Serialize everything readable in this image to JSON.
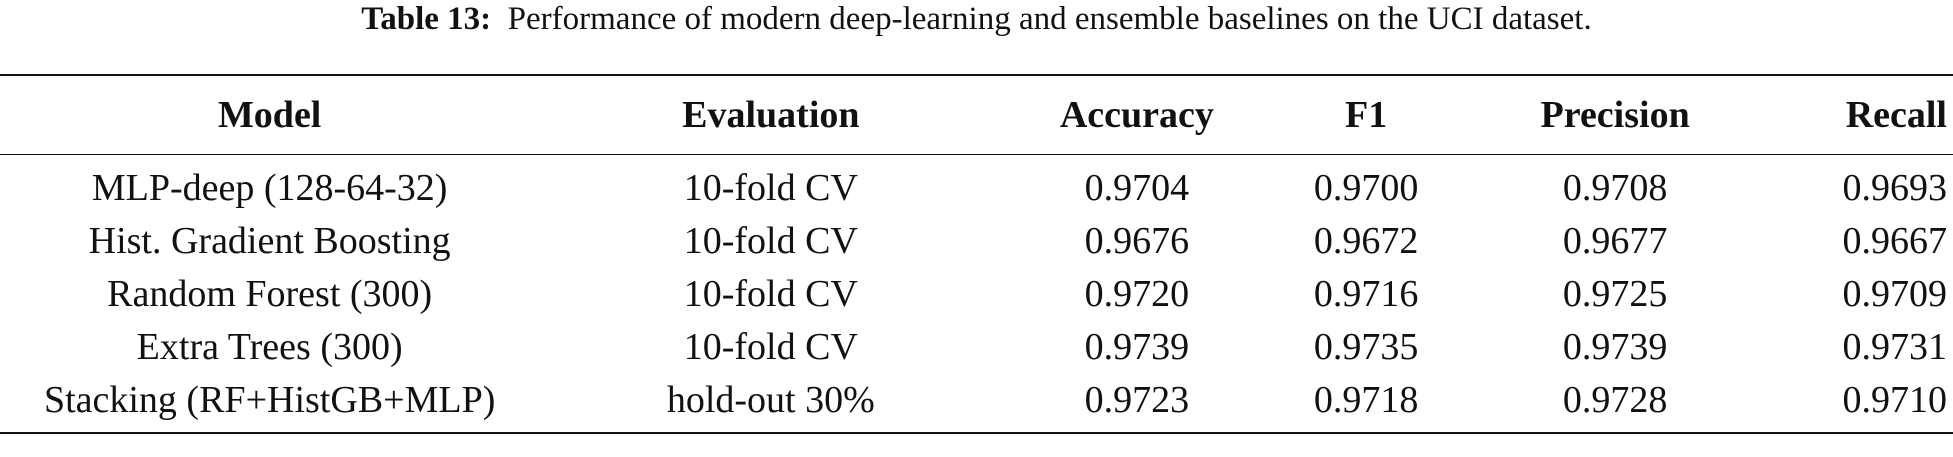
{
  "caption": {
    "label": "Table 13:",
    "text": "Performance of modern deep-learning and ensemble baselines on the UCI dataset."
  },
  "table": {
    "headers": [
      "Model",
      "Evaluation",
      "Accuracy",
      "F1",
      "Precision",
      "Recall"
    ],
    "rows": [
      [
        "MLP-deep (128-64-32)",
        "10-fold CV",
        "0.9704",
        "0.9700",
        "0.9708",
        "0.9693"
      ],
      [
        "Hist. Gradient Boosting",
        "10-fold CV",
        "0.9676",
        "0.9672",
        "0.9677",
        "0.9667"
      ],
      [
        "Random Forest (300)",
        "10-fold CV",
        "0.9720",
        "0.9716",
        "0.9725",
        "0.9709"
      ],
      [
        "Extra Trees (300)",
        "10-fold CV",
        "0.9739",
        "0.9735",
        "0.9739",
        "0.9731"
      ],
      [
        "Stacking (RF+HistGB+MLP)",
        "hold-out 30%",
        "0.9723",
        "0.9718",
        "0.9728",
        "0.9710"
      ]
    ]
  }
}
